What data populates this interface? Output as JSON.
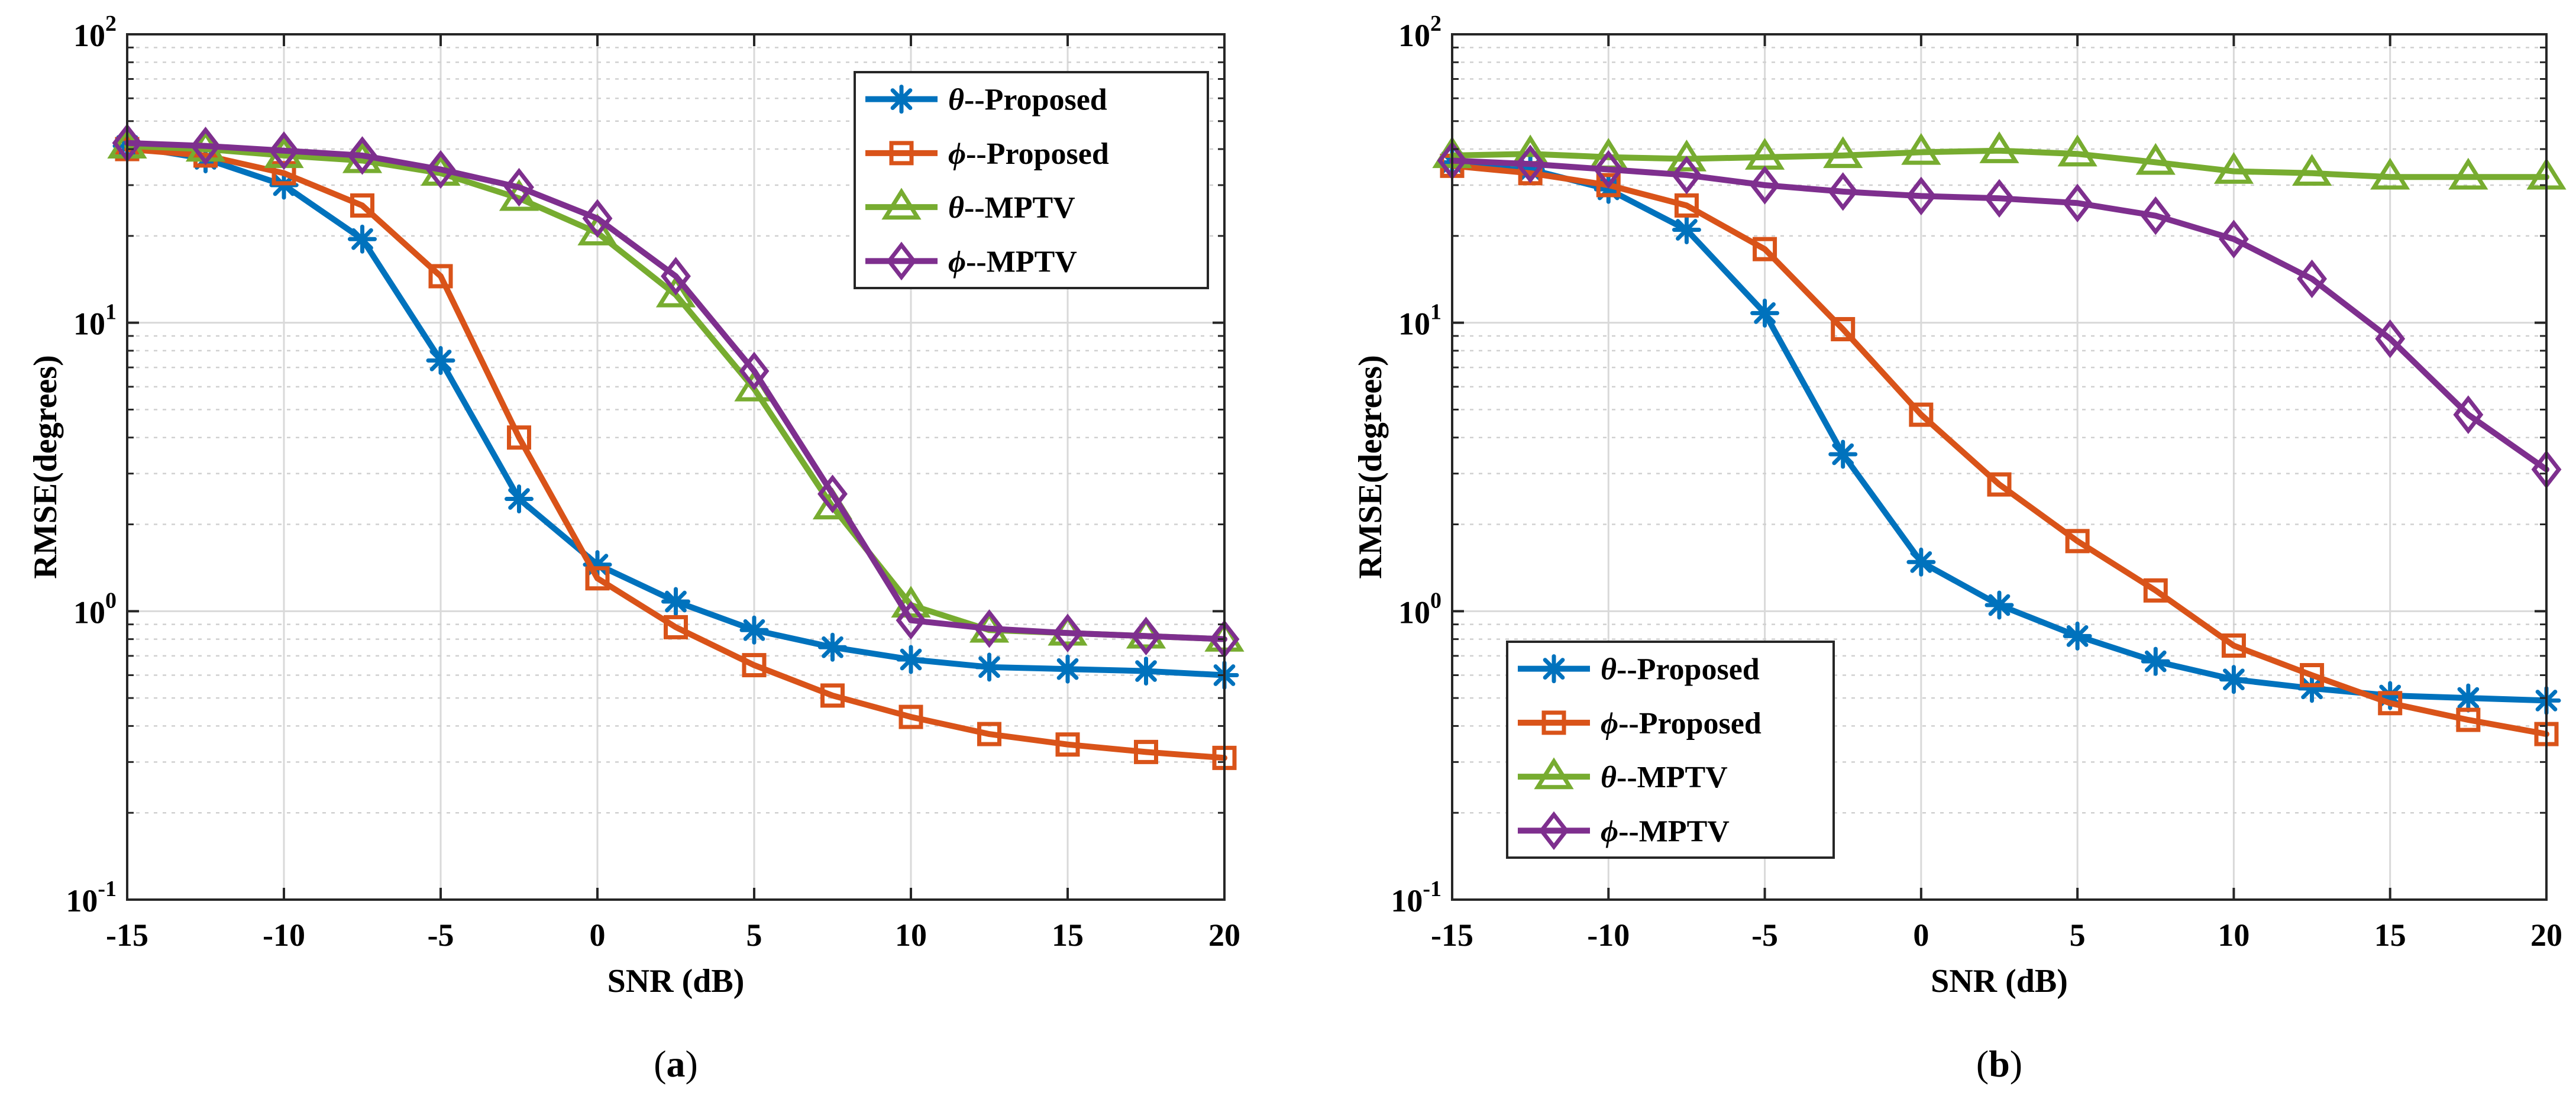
{
  "chart_data": [
    {
      "type": "line",
      "panel": "a",
      "caption": "(a)",
      "xlabel": "SNR (dB)",
      "ylabel": "RMSE(degrees)",
      "yscale": "log",
      "xlim": [
        -15,
        20
      ],
      "ylim": [
        0.1,
        100
      ],
      "grid": true,
      "legend_position": "top-right",
      "x_ticks": [
        "-15",
        "-10",
        "-5",
        "0",
        "5",
        "10",
        "15",
        "20"
      ],
      "x": [
        -15,
        -12.5,
        -10,
        -7.5,
        -5,
        -2.5,
        0,
        2.5,
        5,
        7.5,
        10,
        12.5,
        15,
        17.5,
        20
      ],
      "series": [
        {
          "symbol": "θ",
          "suffix": "--Proposed",
          "color": "#0072BD",
          "marker": "asterisk",
          "values": [
            41,
            37,
            30,
            19.5,
            7.4,
            2.45,
            1.45,
            1.08,
            0.86,
            0.75,
            0.68,
            0.64,
            0.63,
            0.62,
            0.6
          ]
        },
        {
          "symbol": "ϕ",
          "suffix": "--Proposed",
          "color": "#D95319",
          "marker": "square",
          "values": [
            40,
            38,
            33,
            25.5,
            14.5,
            4.0,
            1.3,
            0.88,
            0.65,
            0.51,
            0.43,
            0.375,
            0.345,
            0.325,
            0.31
          ]
        },
        {
          "symbol": "θ",
          "suffix": "--MPTV",
          "color": "#77AC30",
          "marker": "triangle",
          "values": [
            41,
            40,
            38,
            36.5,
            33,
            27,
            20.5,
            12.5,
            5.9,
            2.3,
            1.05,
            0.86,
            0.84,
            0.82,
            0.8
          ]
        },
        {
          "symbol": "ϕ",
          "suffix": "--MPTV",
          "color": "#7E2F8E",
          "marker": "diamond",
          "values": [
            42,
            41,
            39.5,
            38,
            34,
            29.5,
            23,
            14.5,
            6.8,
            2.55,
            0.93,
            0.87,
            0.84,
            0.82,
            0.8
          ]
        }
      ]
    },
    {
      "type": "line",
      "panel": "b",
      "caption": "(b)",
      "xlabel": "SNR (dB)",
      "ylabel": "RMSE(degrees)",
      "yscale": "log",
      "xlim": [
        -15,
        20
      ],
      "ylim": [
        0.1,
        100
      ],
      "grid": true,
      "legend_position": "bottom-left",
      "x_ticks": [
        "-15",
        "-10",
        "-5",
        "0",
        "5",
        "10",
        "15",
        "20"
      ],
      "x": [
        -15,
        -12.5,
        -10,
        -7.5,
        -5,
        -2.5,
        0,
        2.5,
        5,
        7.5,
        10,
        12.5,
        15,
        17.5,
        20
      ],
      "series": [
        {
          "symbol": "θ",
          "suffix": "--Proposed",
          "color": "#0072BD",
          "marker": "asterisk",
          "values": [
            36,
            34,
            29,
            21,
            10.8,
            3.5,
            1.48,
            1.05,
            0.82,
            0.67,
            0.58,
            0.54,
            0.51,
            0.5,
            0.49
          ]
        },
        {
          "symbol": "ϕ",
          "suffix": "--Proposed",
          "color": "#D95319",
          "marker": "square",
          "values": [
            35,
            33,
            30,
            25.5,
            18,
            9.5,
            4.8,
            2.75,
            1.75,
            1.18,
            0.76,
            0.6,
            0.48,
            0.42,
            0.375
          ]
        },
        {
          "symbol": "θ",
          "suffix": "--MPTV",
          "color": "#77AC30",
          "marker": "triangle",
          "values": [
            38,
            38.5,
            37.5,
            37,
            37.5,
            38,
            39,
            39.5,
            38.5,
            36,
            33.5,
            33,
            32,
            32,
            32
          ]
        },
        {
          "symbol": "ϕ",
          "suffix": "--MPTV",
          "color": "#7E2F8E",
          "marker": "diamond",
          "values": [
            36.5,
            35.5,
            34,
            32.5,
            30,
            28.5,
            27.5,
            27,
            26,
            23.5,
            19.5,
            14.2,
            8.8,
            4.8,
            3.1
          ]
        }
      ]
    }
  ]
}
